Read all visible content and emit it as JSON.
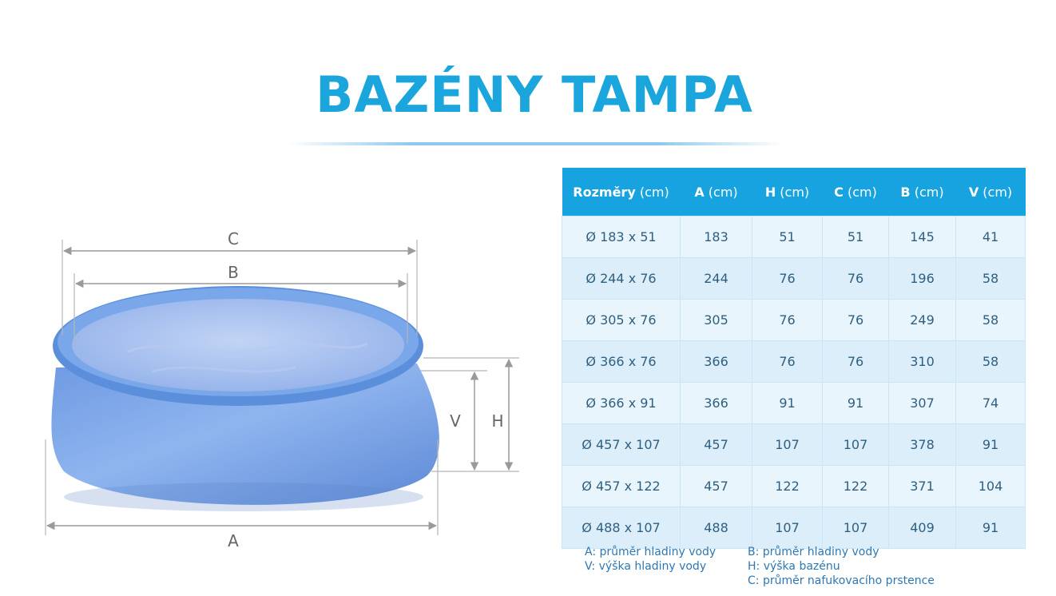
{
  "title": "BAZÉNY TAMPA",
  "diagram": {
    "labels": {
      "c": "C",
      "b": "B",
      "a": "A",
      "v": "V",
      "h": "H"
    },
    "colors": {
      "pool_body": "#7fa9ea",
      "pool_ring": "#5a8fde",
      "water": "#a9c3f2",
      "dimension_lines": "#9a9a9a"
    }
  },
  "table": {
    "headers": [
      {
        "bold": "Rozměry",
        "unit": " (cm)"
      },
      {
        "bold": "A",
        "unit": " (cm)"
      },
      {
        "bold": "H",
        "unit": " (cm)"
      },
      {
        "bold": "C",
        "unit": " (cm)"
      },
      {
        "bold": "B",
        "unit": " (cm)"
      },
      {
        "bold": "V",
        "unit": " (cm)"
      }
    ],
    "rows": [
      [
        "Ø 183 x 51",
        "183",
        "51",
        "51",
        "145",
        "41"
      ],
      [
        "Ø 244 x 76",
        "244",
        "76",
        "76",
        "196",
        "58"
      ],
      [
        "Ø 305 x 76",
        "305",
        "76",
        "76",
        "249",
        "58"
      ],
      [
        "Ø 366 x 76",
        "366",
        "76",
        "76",
        "310",
        "58"
      ],
      [
        "Ø 366 x 91",
        "366",
        "91",
        "91",
        "307",
        "74"
      ],
      [
        "Ø 457 x 107",
        "457",
        "107",
        "107",
        "378",
        "91"
      ],
      [
        "Ø 457 x 122",
        "457",
        "122",
        "122",
        "371",
        "104"
      ],
      [
        "Ø 488 x 107",
        "488",
        "107",
        "107",
        "409",
        "91"
      ]
    ],
    "colors": {
      "header_bg": "#16a3df",
      "header_text": "#ffffff",
      "cell_text": "#2f5f80"
    }
  },
  "legend": {
    "a": "A: průměr hladiny vody",
    "v": "V: výška hladiny vody",
    "b": "B: průměr hladiny vody",
    "h": "H: výška bazénu",
    "c": "C: průměr nafukovacího prstence"
  }
}
